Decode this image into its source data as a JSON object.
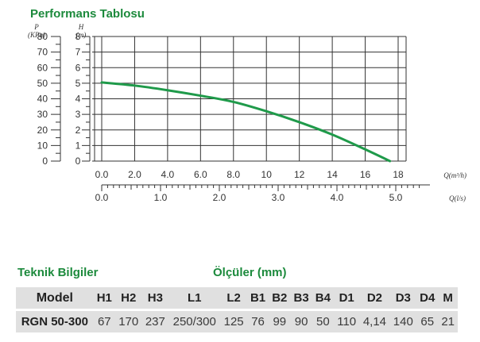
{
  "chart_title": "Performans Tablosu",
  "chart_data": {
    "type": "line",
    "title": "Performans Tablosu",
    "left_axes": [
      {
        "name": "P",
        "unit": "(KPa)",
        "ticks": [
          "0",
          "10",
          "20",
          "30",
          "40",
          "50",
          "60",
          "70",
          "80"
        ]
      },
      {
        "name": "H",
        "unit": "(m)",
        "ticks": [
          "0",
          "1",
          "2",
          "3",
          "4",
          "5",
          "6",
          "7",
          "8"
        ]
      }
    ],
    "x_axis_primary": {
      "unit": "Q(m³/h)",
      "ticks": [
        "0.0",
        "2.0",
        "4.0",
        "6.0",
        "8.0",
        "10",
        "12",
        "14",
        "16",
        "18"
      ],
      "range": [
        0,
        18
      ]
    },
    "x_axis_secondary": {
      "unit": "Q(l/s)",
      "ticks": [
        "0.0",
        "1.0",
        "2.0",
        "3.0",
        "4.0",
        "5.0"
      ],
      "range": [
        0,
        5
      ]
    },
    "ylim": [
      0,
      8
    ],
    "grid": true,
    "line_color": "#1f9a4a",
    "series": [
      {
        "x": [
          0,
          2,
          4,
          6,
          8,
          10,
          12,
          14,
          16,
          17.5
        ],
        "y": [
          5.05,
          4.85,
          4.55,
          4.2,
          3.8,
          3.2,
          2.5,
          1.7,
          0.75,
          0
        ]
      }
    ]
  },
  "specs": {
    "title_left": "Teknik Bilgiler",
    "title_right": "Ölçüler (mm)",
    "headers": [
      "Model",
      "H1",
      "H2",
      "H3",
      "L1",
      "L2",
      "B1",
      "B2",
      "B3",
      "B4",
      "D1",
      "D2",
      "D3",
      "D4",
      "M"
    ],
    "row": [
      "RGN  50-300",
      "67",
      "170",
      "237",
      "250/300",
      "125",
      "76",
      "99",
      "90",
      "50",
      "110",
      "4,14",
      "140",
      "65",
      "21"
    ]
  }
}
